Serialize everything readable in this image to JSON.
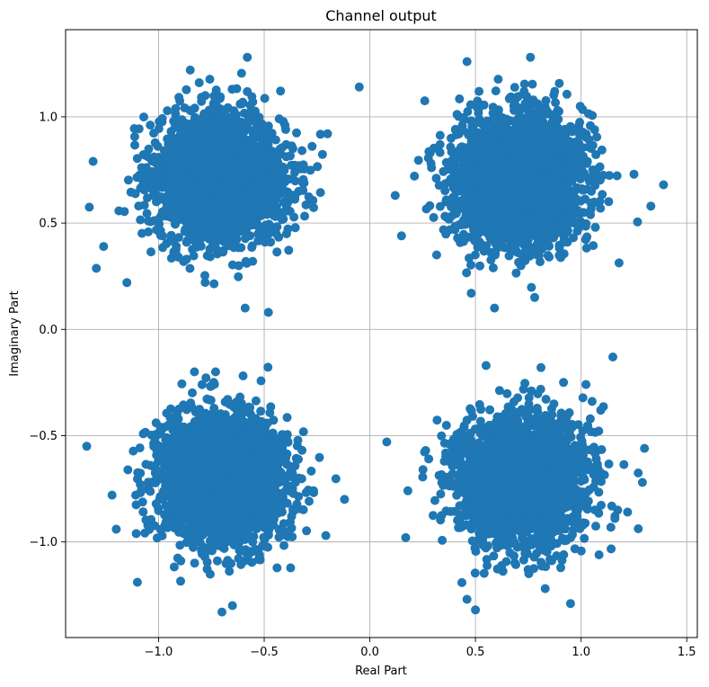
{
  "chart_data": {
    "type": "scatter",
    "title": "Channel output",
    "xlabel": "Real Part",
    "ylabel": "Imaginary Part",
    "xlim": [
      -1.44,
      1.55
    ],
    "ylim": [
      -1.45,
      1.41
    ],
    "xticks": [
      -1.0,
      -0.5,
      0.0,
      0.5,
      1.0,
      1.5
    ],
    "yticks": [
      -1.0,
      -0.5,
      0.0,
      0.5,
      1.0
    ],
    "xtick_labels": [
      "−1.0",
      "−0.5",
      "0.0",
      "0.5",
      "1.0",
      "1.5"
    ],
    "ytick_labels": [
      "−1.0",
      "−0.5",
      "0.0",
      "0.5",
      "1.0"
    ],
    "grid": true,
    "marker_color": "#1f77b4",
    "series": [
      {
        "clusters": [
          {
            "center": [
              -0.707,
              0.707
            ],
            "std": 0.15,
            "count": 2500
          },
          {
            "center": [
              0.707,
              0.707
            ],
            "std": 0.15,
            "count": 2500
          },
          {
            "center": [
              -0.707,
              -0.707
            ],
            "std": 0.15,
            "count": 2500
          },
          {
            "center": [
              0.707,
              -0.707
            ],
            "std": 0.15,
            "count": 2500
          }
        ],
        "outliers": [
          [
            -1.31,
            0.79
          ],
          [
            -1.26,
            0.39
          ],
          [
            -1.15,
            0.22
          ],
          [
            -0.58,
            1.28
          ],
          [
            -0.05,
            1.14
          ],
          [
            -0.59,
            0.1
          ],
          [
            -0.48,
            0.08
          ],
          [
            -0.2,
            0.92
          ],
          [
            -0.85,
            1.22
          ],
          [
            0.12,
            0.63
          ],
          [
            0.15,
            0.44
          ],
          [
            0.46,
            1.26
          ],
          [
            0.76,
            1.28
          ],
          [
            1.39,
            0.68
          ],
          [
            1.33,
            0.58
          ],
          [
            1.25,
            0.73
          ],
          [
            0.59,
            0.1
          ],
          [
            0.78,
            0.15
          ],
          [
            0.48,
            0.17
          ],
          [
            -1.34,
            -0.55
          ],
          [
            -1.1,
            -1.19
          ],
          [
            -0.7,
            -1.33
          ],
          [
            -0.65,
            -1.3
          ],
          [
            -0.12,
            -0.8
          ],
          [
            -1.2,
            -0.94
          ],
          [
            -1.22,
            -0.78
          ],
          [
            -0.83,
            -0.2
          ],
          [
            -0.73,
            -0.2
          ],
          [
            0.08,
            -0.53
          ],
          [
            0.17,
            -0.98
          ],
          [
            1.15,
            -0.13
          ],
          [
            1.3,
            -0.56
          ],
          [
            1.29,
            -0.72
          ],
          [
            0.5,
            -1.32
          ],
          [
            0.46,
            -1.27
          ],
          [
            0.83,
            -1.22
          ],
          [
            0.95,
            -1.29
          ],
          [
            1.22,
            -0.86
          ],
          [
            0.55,
            -0.17
          ],
          [
            0.81,
            -0.18
          ]
        ]
      }
    ]
  }
}
